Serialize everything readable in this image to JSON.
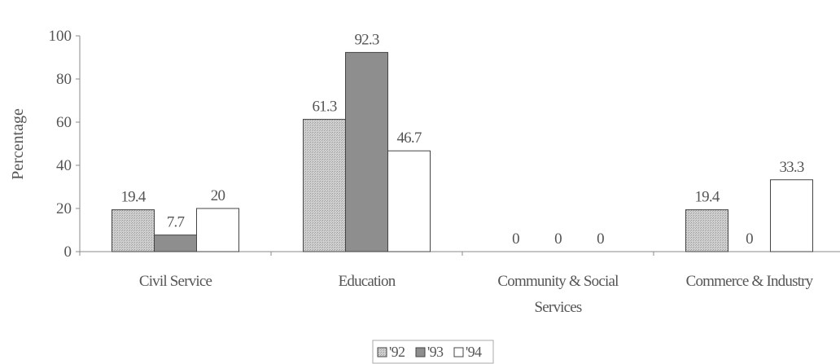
{
  "chart_data": {
    "type": "bar",
    "title": "",
    "xlabel": "",
    "ylabel": "Percentage",
    "ylim": [
      0,
      100
    ],
    "yticks": [
      0,
      20,
      40,
      60,
      80,
      100
    ],
    "grid": false,
    "legend_position": "bottom",
    "categories": [
      [
        "Civil Service"
      ],
      [
        "Education"
      ],
      [
        "Community & Social",
        "Services"
      ],
      [
        "Commerce & Industry"
      ]
    ],
    "series": [
      {
        "name": "'92",
        "values": [
          19.4,
          61.3,
          0,
          19.4
        ],
        "labels": [
          "19.4",
          "61.3",
          "0",
          "19.4"
        ],
        "fill": "#c8c8c8",
        "pattern": "dotted-gray"
      },
      {
        "name": "'93",
        "values": [
          7.7,
          92.3,
          0,
          0
        ],
        "labels": [
          "7.7",
          "92.3",
          "0",
          "0"
        ],
        "fill": "#8e8e8e",
        "pattern": "dark-gray"
      },
      {
        "name": "'94",
        "values": [
          20,
          46.7,
          0,
          33.3
        ],
        "labels": [
          "20",
          "46.7",
          "0",
          "33.3"
        ],
        "fill": "#ffffff",
        "pattern": "white"
      }
    ],
    "colors": {
      "axis": "#888888",
      "text": "#555555",
      "bar_stroke": "#444444"
    }
  }
}
